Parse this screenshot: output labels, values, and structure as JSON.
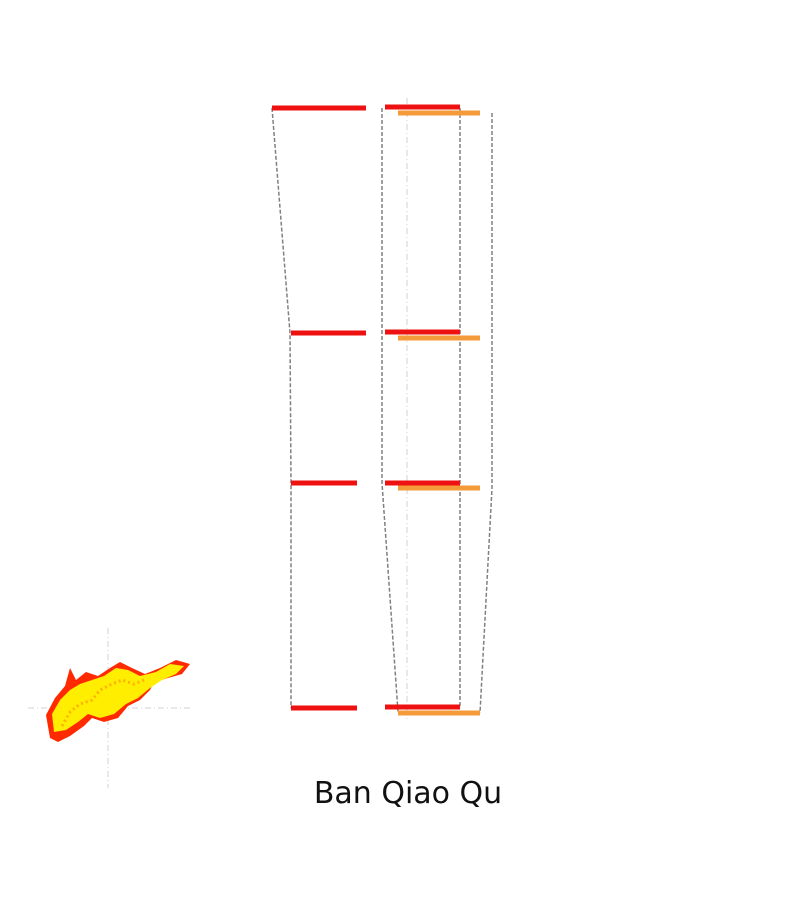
{
  "title": "Ban Qiao Qu",
  "colors": {
    "primary": "#ee1111",
    "secondary": "#f59a3a",
    "outline": "#808080",
    "crosshair": "#d0d0d0",
    "region_fill_a": "#ffee00",
    "region_fill_b": "#ff2200"
  },
  "icons": {
    "locator": "district-locator-icon"
  }
}
